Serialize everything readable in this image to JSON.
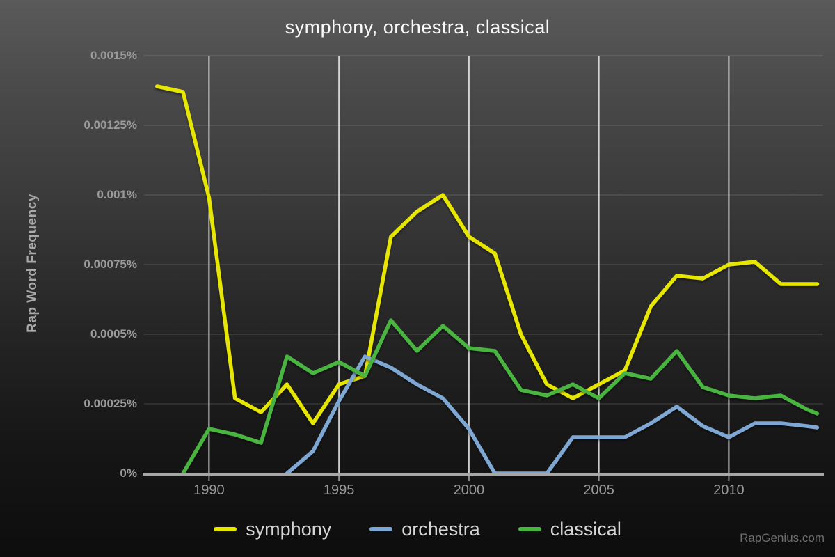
{
  "page": {
    "watermark": "RapGenius.com"
  },
  "colors": {
    "background_top": "#5a5a5a",
    "background_bottom": "#0d0d0d",
    "title_text": "#fafafa",
    "axis_text": "#999999",
    "legend_text": "#d6d6d6",
    "axis_line": "#a6a6a6",
    "vertical_gridline": "#e0e0e0",
    "symphony": "#e6e600",
    "orchestra": "#7ea7d4",
    "classical": "#4ab441"
  },
  "chart_data": {
    "type": "line",
    "title": "symphony, orchestra, classical",
    "xlabel": "",
    "ylabel": "Rap Word Frequency",
    "legend_position": "bottom",
    "grid": "on",
    "xlim": [
      1987.5,
      2013.55
    ],
    "ylim": [
      0,
      0.0015
    ],
    "x_ticks": [
      {
        "label": "1990",
        "value": 1990
      },
      {
        "label": "1995",
        "value": 1995
      },
      {
        "label": "2000",
        "value": 2000
      },
      {
        "label": "2005",
        "value": 2005
      },
      {
        "label": "2010",
        "value": 2010
      }
    ],
    "y_ticks": [
      {
        "label": "0%",
        "value": 0
      },
      {
        "label": "0.00025%",
        "value": 0.00025
      },
      {
        "label": "0.0005%",
        "value": 0.0005
      },
      {
        "label": "0.00075%",
        "value": 0.00075
      },
      {
        "label": "0.001%",
        "value": 0.001
      },
      {
        "label": "0.00125%",
        "value": 0.00125
      },
      {
        "label": "0.0015%",
        "value": 0.0015
      }
    ],
    "y_unit": "percent of rap words",
    "series": [
      {
        "name": "symphony",
        "color": "#e6e600",
        "x": [
          1988,
          1989,
          1990,
          1991,
          1992,
          1993,
          1994,
          1995,
          1996,
          1997,
          1998,
          1999,
          2000,
          2001,
          2002,
          2003,
          2004,
          2005,
          2006,
          2007,
          2008,
          2009,
          2010,
          2011,
          2012,
          2013,
          2013.4
        ],
        "values": [
          0.00139,
          0.00137,
          0.00099,
          0.00027,
          0.00022,
          0.00032,
          0.00018,
          0.00032,
          0.00035,
          0.00085,
          0.00094,
          0.001,
          0.00085,
          0.00079,
          0.0005,
          0.00032,
          0.00027,
          0.00032,
          0.00037,
          0.0006,
          0.00071,
          0.0007,
          0.00075,
          0.00076,
          0.00068,
          0.00068,
          0.00068
        ]
      },
      {
        "name": "orchestra",
        "color": "#7ea7d4",
        "x": [
          1993,
          1994,
          1995,
          1996,
          1997,
          1998,
          1999,
          2000,
          2001,
          2002,
          2003,
          2004,
          2005,
          2006,
          2007,
          2008,
          2009,
          2010,
          2011,
          2012,
          2013,
          2013.4
        ],
        "values": [
          0,
          8e-05,
          0.00026,
          0.00042,
          0.00038,
          0.00032,
          0.00027,
          0.00016,
          0,
          0,
          0,
          0.00013,
          0.00013,
          0.00013,
          0.00018,
          0.00024,
          0.00017,
          0.00013,
          0.00018,
          0.00018,
          0.00017,
          0.000165
        ]
      },
      {
        "name": "classical",
        "color": "#4ab441",
        "x": [
          1989,
          1990,
          1991,
          1992,
          1993,
          1994,
          1995,
          1996,
          1997,
          1998,
          1999,
          2000,
          2001,
          2002,
          2003,
          2004,
          2005,
          2006,
          2007,
          2008,
          2009,
          2010,
          2011,
          2012,
          2013,
          2013.4
        ],
        "values": [
          0,
          0.00016,
          0.00014,
          0.00011,
          0.00042,
          0.00036,
          0.0004,
          0.00035,
          0.00055,
          0.00044,
          0.00053,
          0.00045,
          0.00044,
          0.0003,
          0.00028,
          0.00032,
          0.00027,
          0.00036,
          0.00034,
          0.00044,
          0.00031,
          0.00028,
          0.00027,
          0.00028,
          0.00023,
          0.000215
        ]
      }
    ]
  }
}
